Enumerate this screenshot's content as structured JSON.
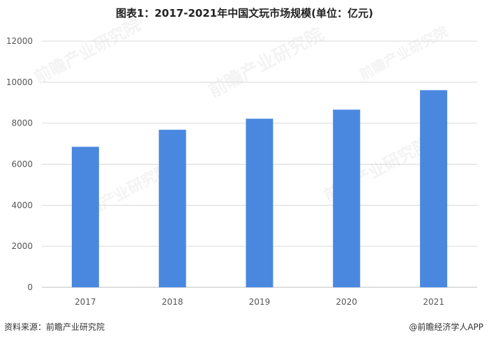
{
  "chart_data": {
    "type": "bar",
    "title": "图表1：2017-2021年中国文玩市场规模(单位：亿元)",
    "categories": [
      "2017",
      "2018",
      "2019",
      "2020",
      "2021"
    ],
    "values": [
      6850,
      7680,
      8220,
      8660,
      9610
    ],
    "ylim": [
      0,
      12000
    ],
    "yticks": [
      "0",
      "2000",
      "4000",
      "6000",
      "8000",
      "10000",
      "12000"
    ],
    "xlabel": "",
    "ylabel": "",
    "grid": true,
    "legend": "none",
    "bar_color": "#4a88e0"
  },
  "footer": {
    "source": "资料来源：前瞻产业研究院",
    "credit": "@前瞻经济学人APP"
  },
  "watermark": {
    "text": "前瞻产业研究院"
  }
}
